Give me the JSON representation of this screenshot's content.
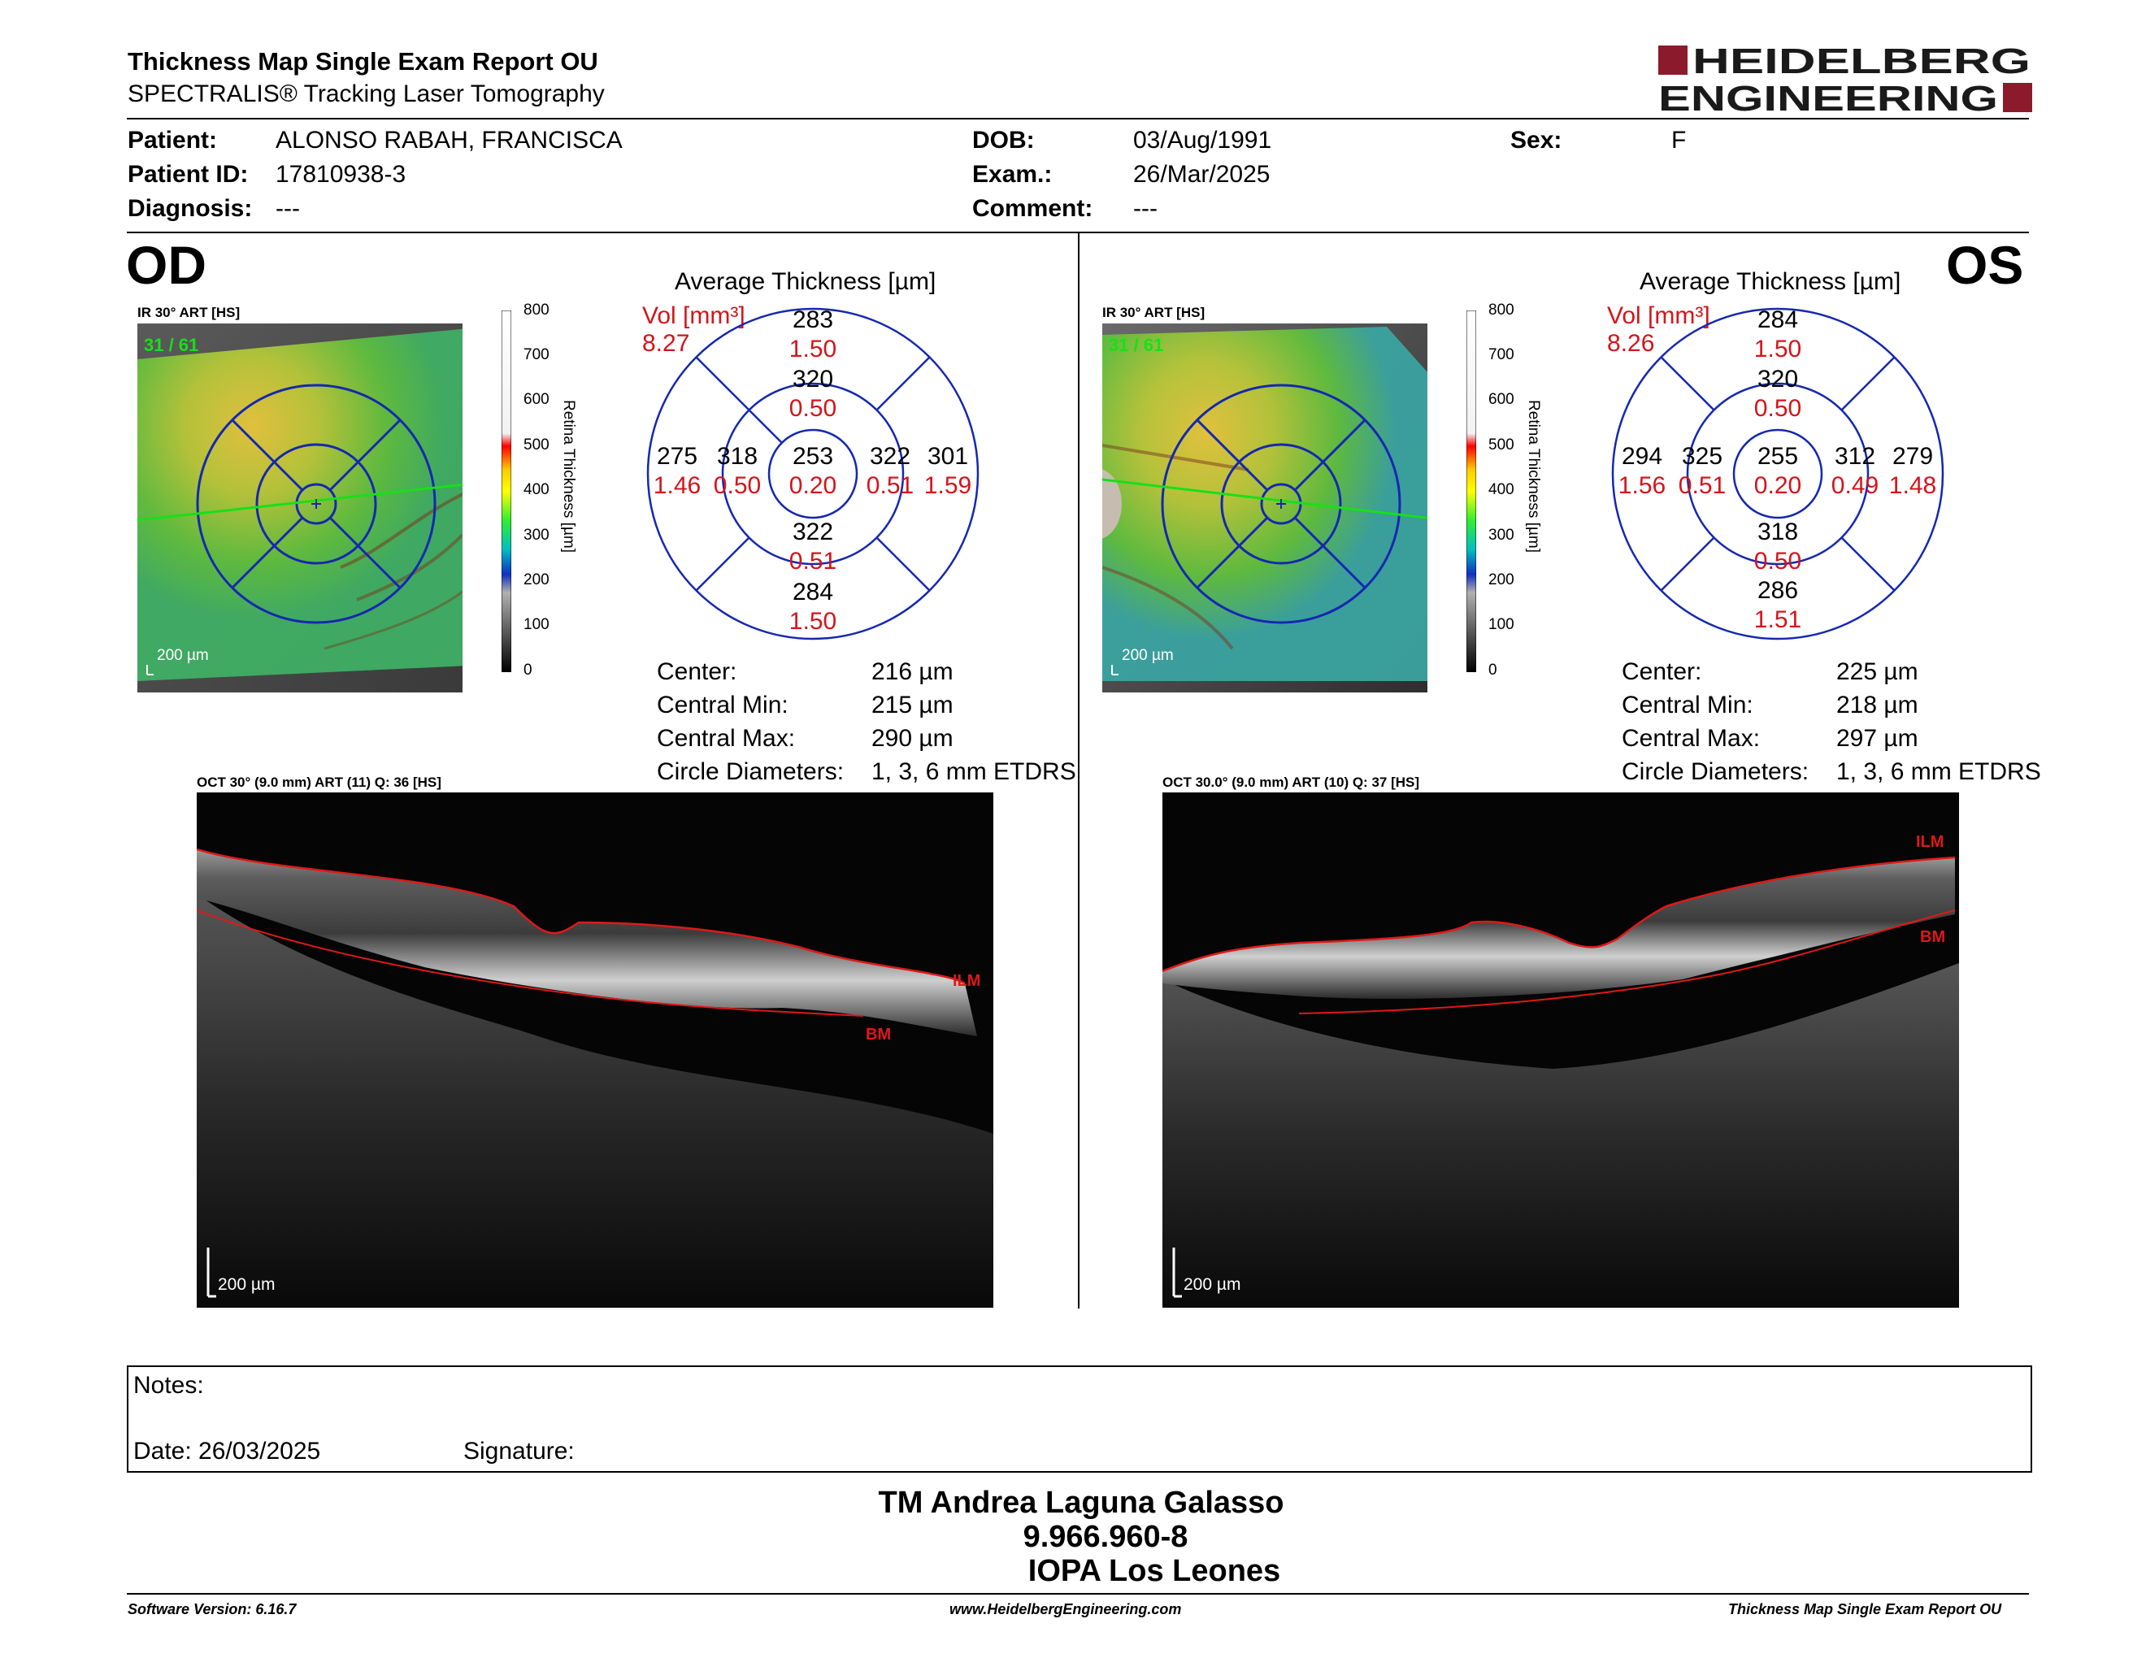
{
  "header": {
    "title": "Thickness Map Single Exam Report OU",
    "subtitle": "SPECTRALIS® Tracking Laser Tomography",
    "logo_line1": "HEIDELBERG",
    "logo_line2": "ENGINEERING",
    "brand_color": "#8b1a2b"
  },
  "patient": {
    "patient_label": "Patient:",
    "patient_value": "ALONSO RABAH, FRANCISCA",
    "id_label": "Patient ID:",
    "id_value": "17810938-3",
    "diagnosis_label": "Diagnosis:",
    "diagnosis_value": "---",
    "dob_label": "DOB:",
    "dob_value": "03/Aug/1991",
    "exam_label": "Exam.:",
    "exam_value": "26/Mar/2025",
    "comment_label": "Comment:",
    "comment_value": "---",
    "sex_label": "Sex:",
    "sex_value": "F"
  },
  "od": {
    "eye": "OD",
    "ir_caption": "IR 30° ART [HS]",
    "frame": "31 / 61",
    "scale_bar": "200 µm",
    "avg_title": "Average Thickness [µm]",
    "vol_label": "Vol [mm³]",
    "vol_total": "8.27",
    "sectors": {
      "center": {
        "t": "253",
        "v": "0.20"
      },
      "inner_sup": {
        "t": "320",
        "v": "0.50"
      },
      "inner_inf": {
        "t": "322",
        "v": "0.51"
      },
      "inner_left": {
        "t": "318",
        "v": "0.50"
      },
      "inner_right": {
        "t": "322",
        "v": "0.51"
      },
      "outer_sup": {
        "t": "283",
        "v": "1.50"
      },
      "outer_inf": {
        "t": "284",
        "v": "1.50"
      },
      "outer_left": {
        "t": "275",
        "v": "1.46"
      },
      "outer_right": {
        "t": "301",
        "v": "1.59"
      }
    },
    "stats": {
      "center_label": "Center:",
      "center_value": "216 µm",
      "min_label": "Central Min:",
      "min_value": "215 µm",
      "max_label": "Central Max:",
      "max_value": "290 µm",
      "diam_label": "Circle Diameters:",
      "diam_value": "1, 3, 6 mm ETDRS"
    },
    "oct_caption": "OCT 30° (9.0 mm) ART (11) Q: 36 [HS]",
    "oct_scale": "200 µm",
    "ilm": "ILM",
    "bm": "BM"
  },
  "os": {
    "eye": "OS",
    "ir_caption": "IR 30° ART [HS]",
    "frame": "31 / 61",
    "scale_bar": "200 µm",
    "avg_title": "Average Thickness [µm]",
    "vol_label": "Vol [mm³]",
    "vol_total": "8.26",
    "sectors": {
      "center": {
        "t": "255",
        "v": "0.20"
      },
      "inner_sup": {
        "t": "320",
        "v": "0.50"
      },
      "inner_inf": {
        "t": "318",
        "v": "0.50"
      },
      "inner_left": {
        "t": "325",
        "v": "0.51"
      },
      "inner_right": {
        "t": "312",
        "v": "0.49"
      },
      "outer_sup": {
        "t": "284",
        "v": "1.50"
      },
      "outer_inf": {
        "t": "286",
        "v": "1.51"
      },
      "outer_left": {
        "t": "294",
        "v": "1.56"
      },
      "outer_right": {
        "t": "279",
        "v": "1.48"
      }
    },
    "stats": {
      "center_label": "Center:",
      "center_value": "225 µm",
      "min_label": "Central Min:",
      "min_value": "218 µm",
      "max_label": "Central Max:",
      "max_value": "297 µm",
      "diam_label": "Circle Diameters:",
      "diam_value": "1, 3, 6 mm ETDRS"
    },
    "oct_caption": "OCT 30.0° (9.0 mm) ART (10) Q: 37 [HS]",
    "oct_scale": "200 µm",
    "ilm": "ILM",
    "bm": "BM"
  },
  "colorscale": {
    "title": "Retina Thickness [µm]",
    "ticks": [
      "800",
      "700",
      "600",
      "500",
      "400",
      "300",
      "200",
      "100",
      "0"
    ]
  },
  "notes": {
    "notes_label": "Notes:",
    "date_label": "Date: 26/03/2025",
    "signature_label": "Signature:"
  },
  "signature_block": {
    "name": "TM Andrea Laguna Galasso",
    "rut": "9.966.960-8",
    "institution": "IOPA Los Leones"
  },
  "footer": {
    "software": "Software Version: 6.16.7",
    "website": "www.HeidelbergEngineering.com",
    "report": "Thickness Map Single Exam Report OU"
  }
}
